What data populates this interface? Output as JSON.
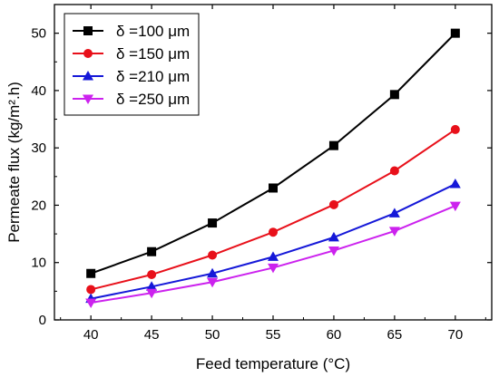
{
  "chart_data": {
    "type": "line",
    "title": "",
    "xlabel": "Feed temperature (°C)",
    "ylabel": "Permeate flux (kg/m².h)",
    "xlim": [
      37,
      73
    ],
    "ylim": [
      0,
      55
    ],
    "x_ticks": [
      40,
      45,
      50,
      55,
      60,
      65,
      70
    ],
    "y_ticks": [
      0,
      10,
      20,
      30,
      40,
      50
    ],
    "grid": false,
    "legend_position": "top-left",
    "x": [
      40,
      45,
      50,
      55,
      60,
      65,
      70
    ],
    "series": [
      {
        "name": "δ =100 μm",
        "color": "#000000",
        "marker": "square",
        "values": [
          8.1,
          11.9,
          16.9,
          23.0,
          30.4,
          39.3,
          50.0
        ]
      },
      {
        "name": "δ =150 μm",
        "color": "#e8101a",
        "marker": "circle",
        "values": [
          5.3,
          7.9,
          11.3,
          15.3,
          20.1,
          26.0,
          33.2
        ]
      },
      {
        "name": "δ =210 μm",
        "color": "#1518d8",
        "marker": "triangle-up",
        "values": [
          3.7,
          5.8,
          8.1,
          11.0,
          14.4,
          18.6,
          23.7
        ]
      },
      {
        "name": "δ =250 μm",
        "color": "#cc22ee",
        "marker": "triangle-down",
        "values": [
          3.0,
          4.7,
          6.6,
          9.1,
          12.1,
          15.5,
          19.9
        ]
      }
    ]
  }
}
